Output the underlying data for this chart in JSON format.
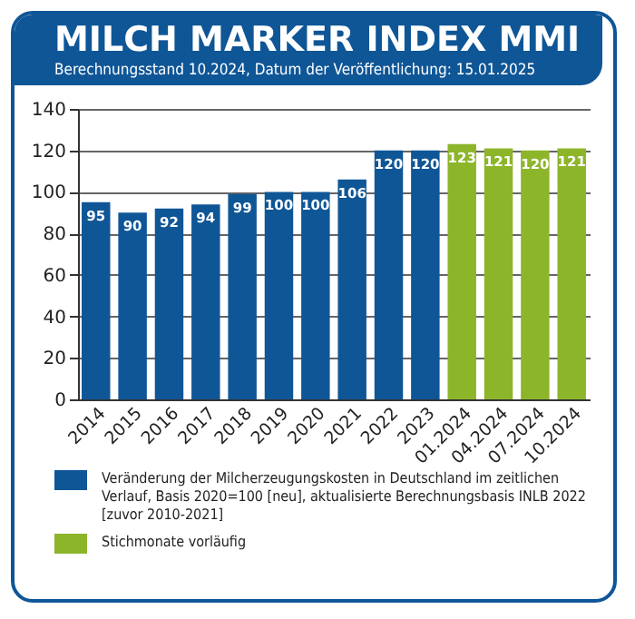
{
  "chart_data": {
    "type": "bar",
    "title": "MILCH MARKER INDEX MMI",
    "subtitle": "Berechnungsstand 10.2024, Datum der Veröffentlichung: 15.01.2025",
    "categories": [
      "2014",
      "2015",
      "2016",
      "2017",
      "2018",
      "2019",
      "2020",
      "2021",
      "2022",
      "2023",
      "01.2024",
      "04.2024",
      "07.2024",
      "10.2024"
    ],
    "series": [
      {
        "name": "Veränderung der Milcherzeugungskosten in Deutschland im zeitlichen Verlauf, Basis 2020=100 [neu], aktualisierte Berechnungsbasis INLB 2022 [zuvor 2010-2021]",
        "color": "#0f5697",
        "values": [
          95,
          90,
          92,
          94,
          99,
          100,
          100,
          106,
          120,
          120,
          null,
          null,
          null,
          null
        ]
      },
      {
        "name": "Stichmonate vorläufig",
        "color": "#8db52a",
        "values": [
          null,
          null,
          null,
          null,
          null,
          null,
          null,
          null,
          null,
          null,
          123,
          121,
          120,
          121
        ]
      }
    ],
    "ylim": [
      0,
      140
    ],
    "yticks": [
      0,
      20,
      40,
      60,
      80,
      100,
      120,
      140
    ],
    "grid": "y",
    "legend": "bottom",
    "data_labels": true
  }
}
